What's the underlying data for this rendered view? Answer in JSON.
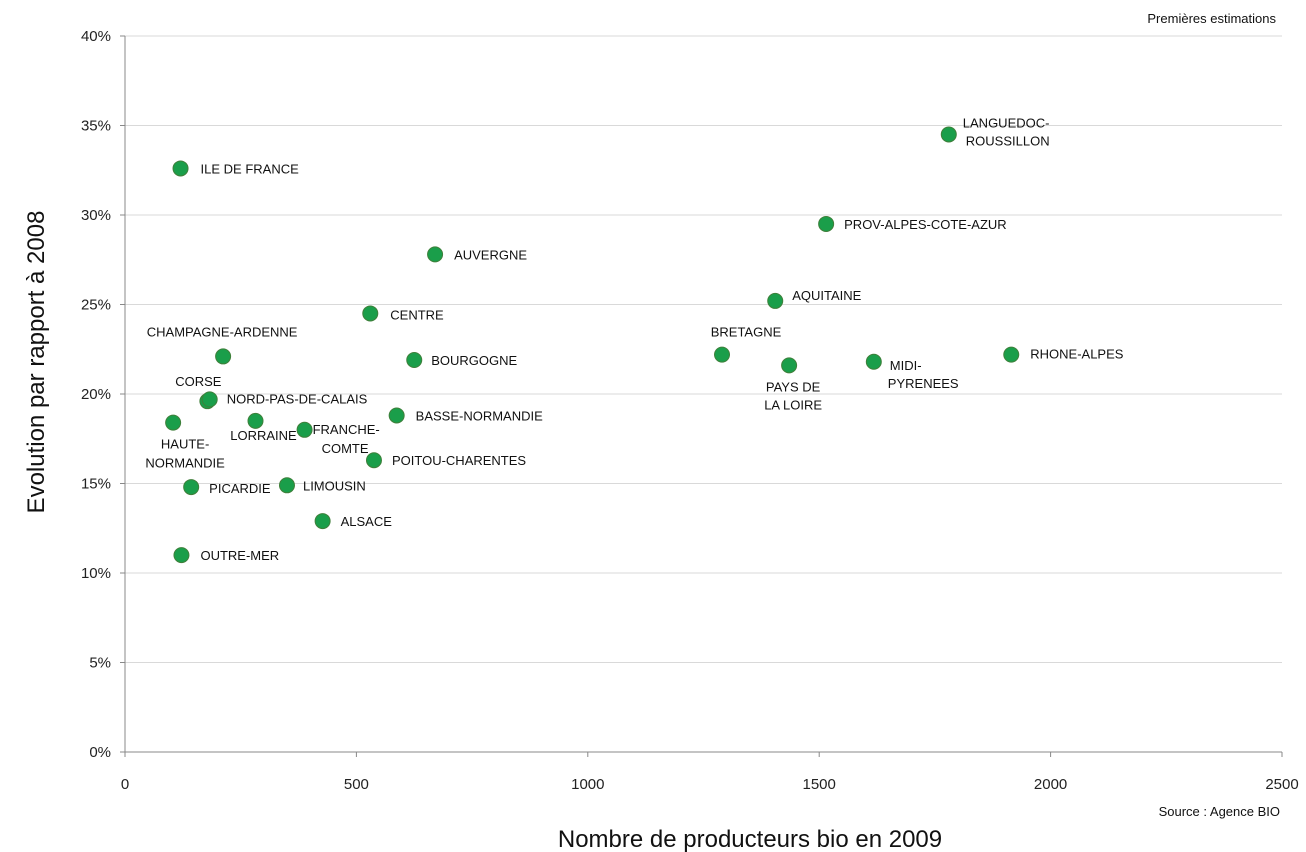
{
  "notes": {
    "top_right": "Premières estimations",
    "source": "Source : Agence BIO"
  },
  "chart_data": {
    "type": "scatter",
    "xlabel": "Nombre de producteurs bio en 2009",
    "ylabel": "Evolution par rapport à 2008",
    "xlim": [
      0,
      2500
    ],
    "ylim": [
      0,
      0.4
    ],
    "x_ticks": [
      0,
      500,
      1000,
      1500,
      2000,
      2500
    ],
    "y_ticks": [
      0,
      0.05,
      0.1,
      0.15,
      0.2,
      0.25,
      0.3,
      0.35,
      0.4
    ],
    "x_tick_labels": [
      "0",
      "500",
      "1000",
      "1500",
      "2000",
      "2500"
    ],
    "y_tick_labels": [
      "0%",
      "5%",
      "10%",
      "15%",
      "20%",
      "25%",
      "30%",
      "35%",
      "40%"
    ],
    "grid": "horizontal",
    "marker_color": "#1a9e4a",
    "points": [
      {
        "label": "ILE DE FRANCE",
        "x": 120,
        "y": 0.326
      },
      {
        "label": "LANGUEDOC-ROUSSILLON",
        "x": 1780,
        "y": 0.345
      },
      {
        "label": "PROV-ALPES-COTE-AZUR",
        "x": 1515,
        "y": 0.295
      },
      {
        "label": "AUVERGNE",
        "x": 670,
        "y": 0.278
      },
      {
        "label": "AQUITAINE",
        "x": 1405,
        "y": 0.252
      },
      {
        "label": "CENTRE",
        "x": 530,
        "y": 0.245
      },
      {
        "label": "BRETAGNE",
        "x": 1290,
        "y": 0.222
      },
      {
        "label": "RHONE-ALPES",
        "x": 1915,
        "y": 0.222
      },
      {
        "label": "CHAMPAGNE-ARDENNE",
        "x": 212,
        "y": 0.221
      },
      {
        "label": "BOURGOGNE",
        "x": 625,
        "y": 0.219
      },
      {
        "label": "MIDI-PYRENEES",
        "x": 1618,
        "y": 0.218
      },
      {
        "label": "PAYS DE LA LOIRE",
        "x": 1435,
        "y": 0.216
      },
      {
        "label": "CORSE",
        "x": 178,
        "y": 0.196
      },
      {
        "label": "NORD-PAS-DE-CALAIS",
        "x": 183,
        "y": 0.197
      },
      {
        "label": "BASSE-NORMANDIE",
        "x": 587,
        "y": 0.188
      },
      {
        "label": "LORRAINE",
        "x": 282,
        "y": 0.185
      },
      {
        "label": "HAUTE-NORMANDIE",
        "x": 104,
        "y": 0.184
      },
      {
        "label": "FRANCHE-COMTE",
        "x": 388,
        "y": 0.18
      },
      {
        "label": "POITOU-CHARENTES",
        "x": 538,
        "y": 0.163
      },
      {
        "label": "PICARDIE",
        "x": 143,
        "y": 0.148
      },
      {
        "label": "LIMOUSIN",
        "x": 350,
        "y": 0.149
      },
      {
        "label": "ALSACE",
        "x": 427,
        "y": 0.129
      },
      {
        "label": "OUTRE-MER",
        "x": 122,
        "y": 0.11
      }
    ]
  }
}
